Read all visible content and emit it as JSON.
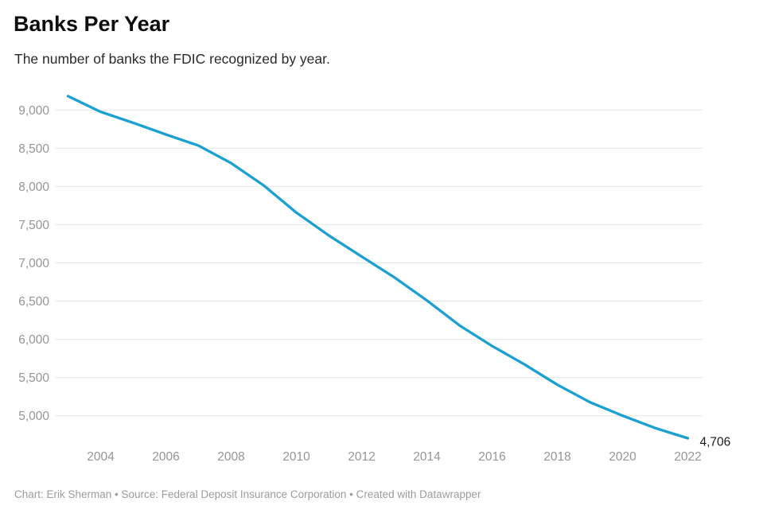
{
  "header": {
    "title": "Banks Per Year",
    "subtitle": "The number of banks the FDIC recognized by year."
  },
  "footer": {
    "text": "Chart: Erik Sherman • Source: Federal Deposit Insurance Corporation • Created with Datawrapper"
  },
  "chart_data": {
    "type": "line",
    "title": "Banks Per Year",
    "subtitle": "The number of banks the FDIC recognized by year.",
    "x": [
      2003,
      2004,
      2005,
      2006,
      2007,
      2008,
      2009,
      2010,
      2011,
      2012,
      2013,
      2014,
      2015,
      2016,
      2017,
      2018,
      2019,
      2020,
      2021,
      2022
    ],
    "values": [
      9181,
      8976,
      8832,
      8680,
      8534,
      8305,
      8012,
      7658,
      7357,
      7083,
      6812,
      6509,
      6182,
      5913,
      5670,
      5406,
      5177,
      5001,
      4839,
      4706
    ],
    "end_label": "4,706",
    "x_tick_values": [
      2004,
      2006,
      2008,
      2010,
      2012,
      2014,
      2016,
      2018,
      2020,
      2022
    ],
    "x_tick_labels": [
      "2004",
      "2006",
      "2008",
      "2010",
      "2012",
      "2014",
      "2016",
      "2018",
      "2020",
      "2022"
    ],
    "y_tick_values": [
      5000,
      5500,
      6000,
      6500,
      7000,
      7500,
      8000,
      8500,
      9000
    ],
    "y_tick_labels": [
      "5,000",
      "5,500",
      "6,000",
      "6,500",
      "7,000",
      "7,500",
      "8,000",
      "8,500",
      "9,000"
    ],
    "xlim": [
      2003,
      2022
    ],
    "ylim": [
      4650,
      9250
    ],
    "xlabel": "",
    "ylabel": "",
    "grid": "horizontal",
    "legend": "none",
    "colors": {
      "line": "#1aa0d2",
      "gridline": "#e5e5e5",
      "tick_text": "#969696",
      "end_label_text": "#1a1a1a"
    }
  }
}
